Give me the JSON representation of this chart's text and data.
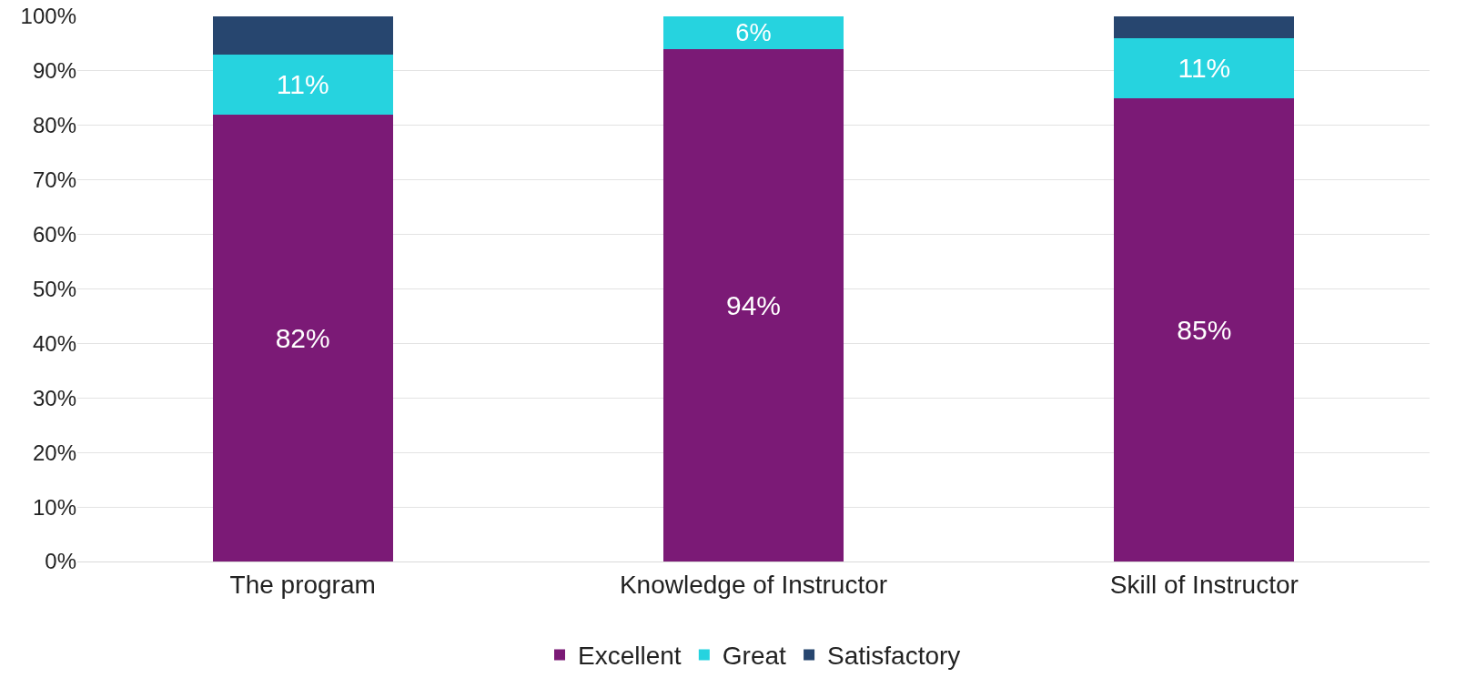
{
  "chart_data": {
    "type": "bar",
    "stacked": true,
    "categories": [
      "The program",
      "Knowledge of Instructor",
      "Skill of Instructor"
    ],
    "series": [
      {
        "name": "Excellent",
        "color": "#7b1a76",
        "values": [
          82,
          94,
          85
        ],
        "value_labels": [
          "82%",
          "94%",
          "85%"
        ]
      },
      {
        "name": "Great",
        "color": "#26d3df",
        "values": [
          11,
          6,
          11
        ],
        "value_labels": [
          "11%",
          "6%",
          "11%"
        ]
      },
      {
        "name": "Satisfactory",
        "color": "#27466f",
        "values": [
          7,
          0,
          4
        ],
        "value_labels": [
          null,
          null,
          null
        ]
      }
    ],
    "ylim": [
      0,
      100
    ],
    "yticks": [
      {
        "value": 0,
        "label": "0%"
      },
      {
        "value": 10,
        "label": "10%"
      },
      {
        "value": 20,
        "label": "20%"
      },
      {
        "value": 30,
        "label": "30%"
      },
      {
        "value": 40,
        "label": "40%"
      },
      {
        "value": 50,
        "label": "50%"
      },
      {
        "value": 60,
        "label": "60%"
      },
      {
        "value": 70,
        "label": "70%"
      },
      {
        "value": 80,
        "label": "80%"
      },
      {
        "value": 90,
        "label": "90%"
      },
      {
        "value": 100,
        "label": "100%"
      }
    ],
    "grid": "y",
    "legend": "bottom"
  }
}
